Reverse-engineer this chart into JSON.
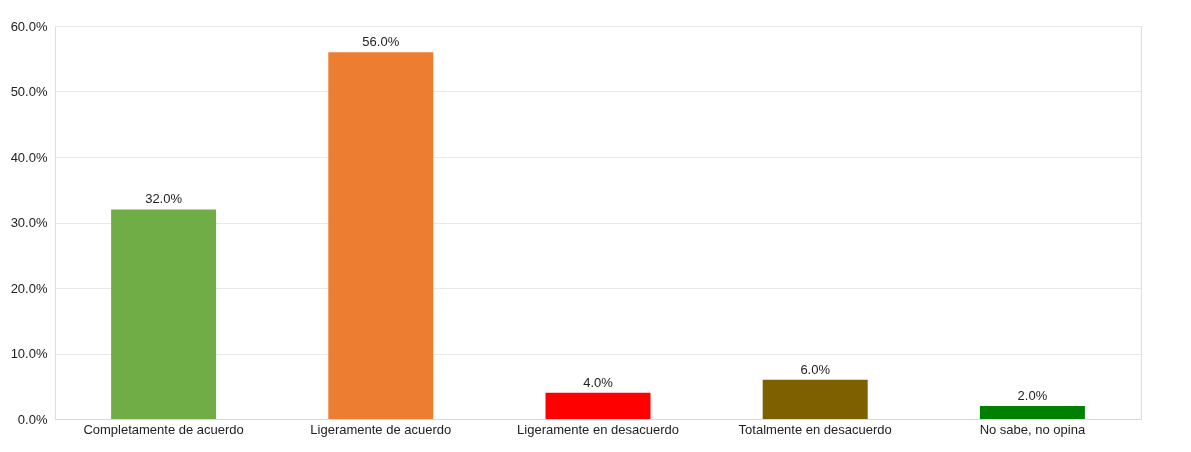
{
  "chart_data": {
    "type": "bar",
    "categories": [
      "Completamente de acuerdo",
      "Ligeramente de acuerdo",
      "Ligeramente en desacuerdo",
      "Totalmente en desacuerdo",
      "No sabe, no opina"
    ],
    "values": [
      32,
      56,
      4,
      6,
      2
    ],
    "colors": [
      "#70ad47",
      "#ed7d31",
      "#ff0000",
      "#7f6000",
      "#008000"
    ],
    "value_labels": [
      "32.0%",
      "56.0%",
      "4.0%",
      "6.0%",
      "2.0%"
    ],
    "ylim": [
      0,
      60
    ],
    "yticks": [
      {
        "value": 0,
        "label": "0.0%"
      },
      {
        "value": 10,
        "label": "10.0%"
      },
      {
        "value": 20,
        "label": "20.0%"
      },
      {
        "value": 30,
        "label": "30.0%"
      },
      {
        "value": 40,
        "label": "40.0%"
      },
      {
        "value": 50,
        "label": "50.0%"
      },
      {
        "value": 60,
        "label": "60.0%"
      }
    ],
    "grid": "y"
  }
}
